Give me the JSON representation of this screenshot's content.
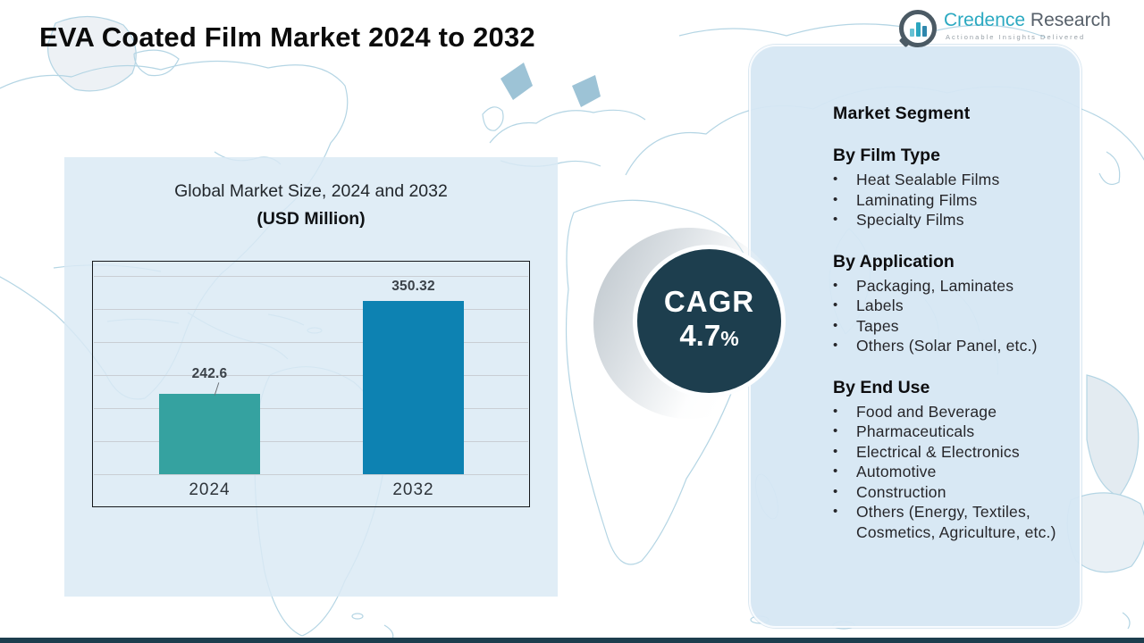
{
  "page": {
    "title": "EVA Coated Film Market 2024 to 2032"
  },
  "logo": {
    "icon": "bar-chart-bubble-icon",
    "brand_primary": "Credence",
    "brand_secondary": "Research",
    "tagline": "Actionable Insights Delivered"
  },
  "chart_panel": {
    "title_line1": "Global Market Size, 2024 and 2032",
    "title_line2": "(USD Million)"
  },
  "chart_data": {
    "type": "bar",
    "title": "Global Market Size, 2024 and 2032",
    "subtitle": "(USD Million)",
    "categories": [
      "2024",
      "2032"
    ],
    "values": [
      242.6,
      350.32
    ],
    "value_labels": [
      "242.6",
      "350.32"
    ],
    "bar_colors": [
      "#35a2a0",
      "#0d82b2"
    ],
    "xlabel": "",
    "ylabel": "",
    "axis_min_estimate": 150,
    "grid": true,
    "legend": false
  },
  "cagr": {
    "label": "CAGR",
    "value": "4.7",
    "percent_sign": "%"
  },
  "segments": {
    "heading": "Market Segment",
    "groups": [
      {
        "title": "By Film Type",
        "items": [
          "Heat Sealable Films",
          "Laminating Films",
          "Specialty Films"
        ]
      },
      {
        "title": "By Application",
        "items": [
          "Packaging, Laminates",
          "Labels",
          "Tapes",
          "Others (Solar Panel, etc.)"
        ]
      },
      {
        "title": "By End Use",
        "items": [
          "Food and Beverage",
          "Pharmaceuticals",
          "Electrical & Electronics",
          "Automotive",
          "Construction",
          "Others (Energy, Textiles, Cosmetics, Agriculture, etc.)"
        ]
      }
    ]
  },
  "colors": {
    "bar_2024": "#35a2a0",
    "bar_2032": "#0d82b2",
    "cagr_circle": "#1d3e4e",
    "panel_background": "#d6e7f3",
    "map_outline": "#b4d5e4",
    "brand_teal": "#2ba9c1",
    "footer_bar": "#1d3e4e"
  }
}
